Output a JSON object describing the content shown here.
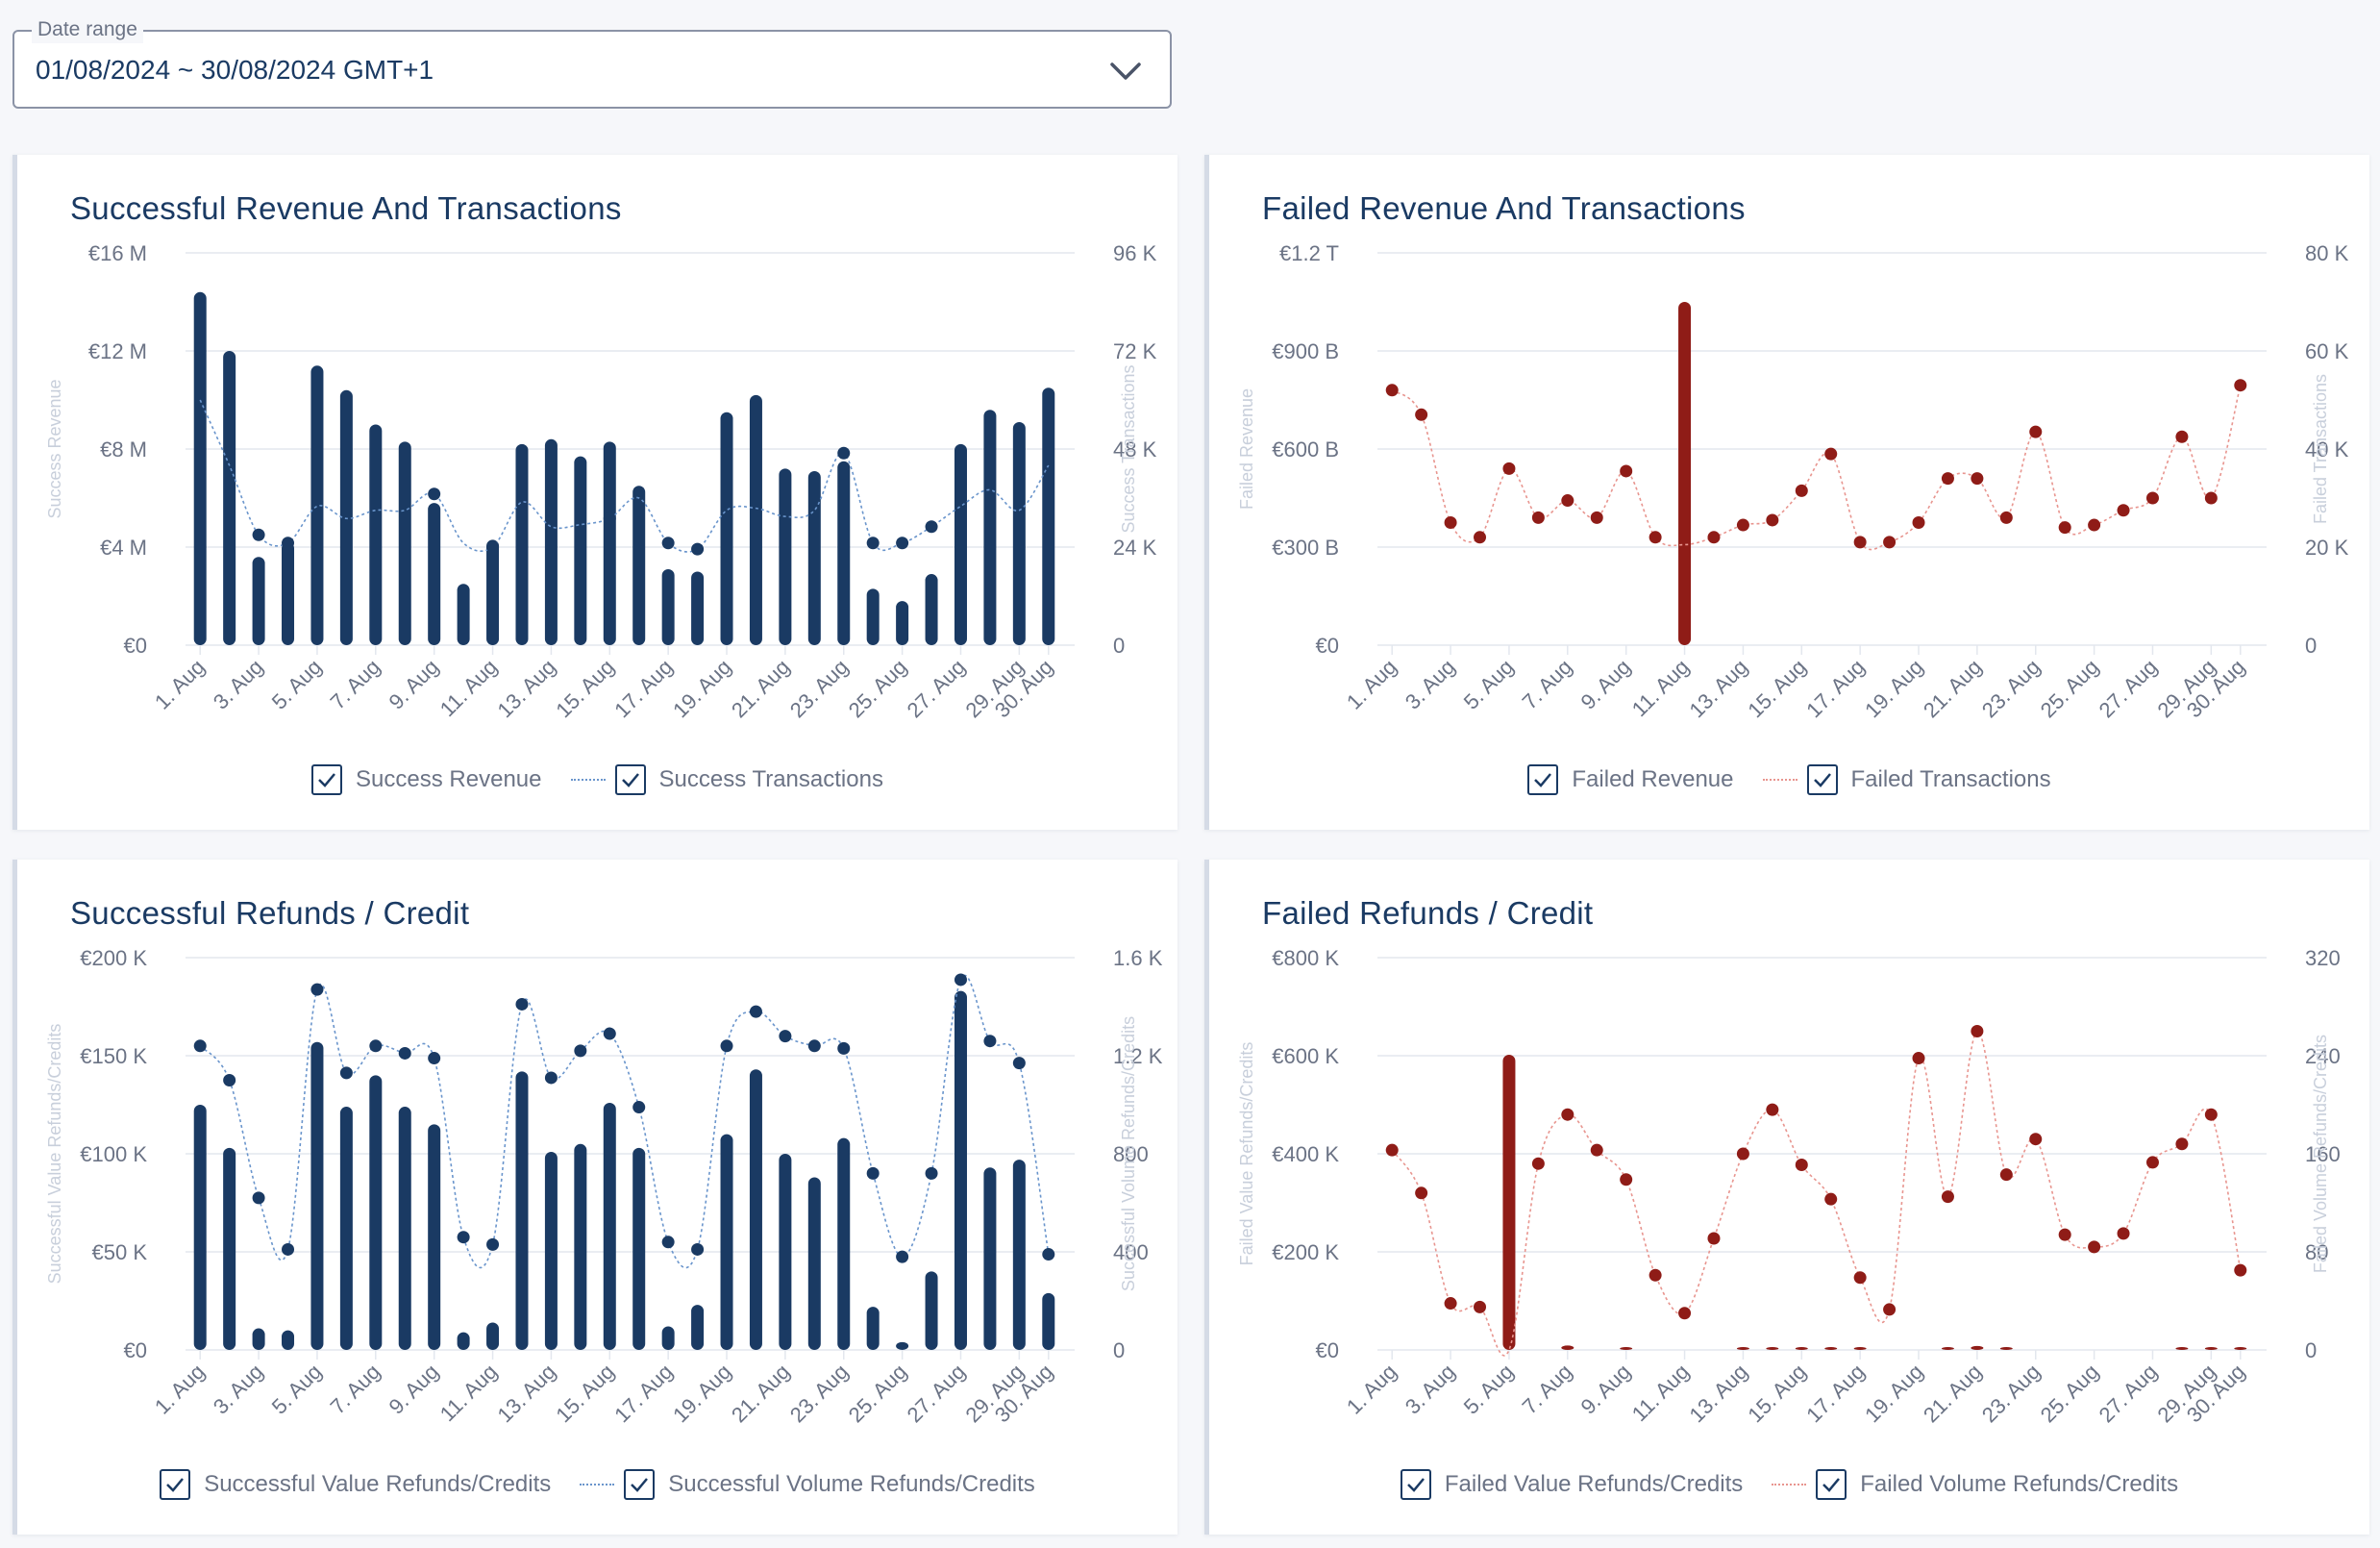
{
  "date_range": {
    "label": "Date range",
    "value": "01/08/2024 ~ 30/08/2024 GMT+1"
  },
  "colors": {
    "navy": "#1a3a63",
    "navy_line": "#6a95cc",
    "red": "#8f1c17",
    "red_line": "#e8958f",
    "grid": "#e3e7ee",
    "tick": "#6b7385",
    "axis_title": "#c8cfdb"
  },
  "icons": {
    "dropdown": "chevron-down-icon",
    "legend_checkbox": "checkbox-checked-icon"
  },
  "chart_data": [
    {
      "id": "sr",
      "type": "bar",
      "title": "Successful Revenue And Transactions",
      "categories": [
        "1. Aug",
        "2. Aug",
        "3. Aug",
        "4. Aug",
        "5. Aug",
        "6. Aug",
        "7. Aug",
        "8. Aug",
        "9. Aug",
        "10. Aug",
        "11. Aug",
        "12. Aug",
        "13. Aug",
        "14. Aug",
        "15. Aug",
        "16. Aug",
        "17. Aug",
        "18. Aug",
        "19. Aug",
        "20. Aug",
        "21. Aug",
        "22. Aug",
        "23. Aug",
        "24. Aug",
        "25. Aug",
        "26. Aug",
        "27. Aug",
        "28. Aug",
        "29. Aug",
        "30. Aug"
      ],
      "x_tick_labels": [
        "1. Aug",
        "3. Aug",
        "5. Aug",
        "7. Aug",
        "9. Aug",
        "11. Aug",
        "13. Aug",
        "15. Aug",
        "17. Aug",
        "19. Aug",
        "21. Aug",
        "23. Aug",
        "25. Aug",
        "27. Aug",
        "29. Aug",
        "30. Aug"
      ],
      "ylim_left": [
        0,
        16000000
      ],
      "ylim_right": [
        0,
        96000
      ],
      "y_left_ticks": [
        "€0",
        "€4 M",
        "€8 M",
        "€12 M",
        "€16 M"
      ],
      "y_right_ticks": [
        "0",
        "24 K",
        "48 K",
        "72 K",
        "96 K"
      ],
      "ylabel_left": "Success Revenue",
      "ylabel_right": "Success Transactions",
      "bar_series": {
        "name": "Success Revenue",
        "values": [
          14400000,
          12000000,
          3600000,
          4200000,
          11400000,
          10400000,
          9000000,
          8300000,
          5800000,
          2500000,
          4300000,
          8200000,
          8400000,
          7700000,
          8300000,
          6500000,
          3100000,
          3000000,
          9500000,
          10200000,
          7200000,
          7100000,
          7500000,
          2300000,
          1800000,
          2900000,
          8200000,
          9600000,
          9100000,
          10500000
        ]
      },
      "line_series": {
        "name": "Success Transactions",
        "values": [
          60000,
          44000,
          27000,
          25000,
          34000,
          31000,
          33000,
          33000,
          37000,
          25000,
          24000,
          35000,
          29000,
          29500,
          31000,
          36000,
          25000,
          23500,
          33000,
          33500,
          31500,
          33000,
          47000,
          25000,
          25000,
          29000,
          34000,
          38000,
          33000,
          44000
        ],
        "marker_days": [
          3,
          4,
          9,
          11,
          15,
          17,
          18,
          23,
          24,
          25,
          26
        ]
      }
    },
    {
      "id": "fr",
      "type": "bar",
      "title": "Failed Revenue And Transactions",
      "categories": [
        "1. Aug",
        "2. Aug",
        "3. Aug",
        "4. Aug",
        "5. Aug",
        "6. Aug",
        "7. Aug",
        "8. Aug",
        "9. Aug",
        "10. Aug",
        "11. Aug",
        "12. Aug",
        "13. Aug",
        "14. Aug",
        "15. Aug",
        "16. Aug",
        "17. Aug",
        "18. Aug",
        "19. Aug",
        "20. Aug",
        "21. Aug",
        "22. Aug",
        "23. Aug",
        "24. Aug",
        "25. Aug",
        "26. Aug",
        "27. Aug",
        "28. Aug",
        "29. Aug",
        "30. Aug"
      ],
      "x_tick_labels": [
        "1. Aug",
        "3. Aug",
        "5. Aug",
        "7. Aug",
        "9. Aug",
        "11. Aug",
        "13. Aug",
        "15. Aug",
        "17. Aug",
        "19. Aug",
        "21. Aug",
        "23. Aug",
        "25. Aug",
        "27. Aug",
        "29. Aug",
        "30. Aug"
      ],
      "ylim_left": [
        0,
        1200000000000
      ],
      "ylim_right": [
        0,
        80000
      ],
      "y_left_ticks": [
        "€0",
        "€300 B",
        "€600 B",
        "€900 B",
        "€1.2 T"
      ],
      "y_right_ticks": [
        "0",
        "20 K",
        "40 K",
        "60 K",
        "80 K"
      ],
      "ylabel_left": "Failed Revenue",
      "ylabel_right": "Failed Transactions",
      "bar_series": {
        "name": "Failed Revenue",
        "values": [
          0,
          0,
          0,
          0,
          0,
          0,
          0,
          0,
          0,
          0,
          1050000000000,
          0,
          0,
          0,
          0,
          0,
          0,
          0,
          0,
          0,
          0,
          0,
          0,
          0,
          0,
          0,
          0,
          0,
          0,
          0
        ]
      },
      "line_series": {
        "name": "Failed Transactions",
        "values": [
          52000,
          47000,
          25000,
          22000,
          36000,
          26000,
          29500,
          26000,
          35500,
          22000,
          20500,
          22000,
          24500,
          25500,
          31500,
          39000,
          21000,
          21000,
          25000,
          34000,
          34000,
          26000,
          43500,
          24000,
          24500,
          27500,
          30000,
          42500,
          30000,
          53000
        ],
        "marker_days": [
          1,
          2,
          3,
          4,
          5,
          6,
          7,
          8,
          9,
          10,
          12,
          13,
          14,
          15,
          16,
          17,
          18,
          19,
          20,
          21,
          22,
          23,
          24,
          25,
          26,
          27,
          28,
          29,
          30
        ]
      }
    },
    {
      "id": "sf",
      "type": "bar",
      "title": "Successful Refunds / Credit",
      "categories": [
        "1. Aug",
        "2. Aug",
        "3. Aug",
        "4. Aug",
        "5. Aug",
        "6. Aug",
        "7. Aug",
        "8. Aug",
        "9. Aug",
        "10. Aug",
        "11. Aug",
        "12. Aug",
        "13. Aug",
        "14. Aug",
        "15. Aug",
        "16. Aug",
        "17. Aug",
        "18. Aug",
        "19. Aug",
        "20. Aug",
        "21. Aug",
        "22. Aug",
        "23. Aug",
        "24. Aug",
        "25. Aug",
        "26. Aug",
        "27. Aug",
        "28. Aug",
        "29. Aug",
        "30. Aug"
      ],
      "x_tick_labels": [
        "1. Aug",
        "3. Aug",
        "5. Aug",
        "7. Aug",
        "9. Aug",
        "11. Aug",
        "13. Aug",
        "15. Aug",
        "17. Aug",
        "19. Aug",
        "21. Aug",
        "23. Aug",
        "25. Aug",
        "27. Aug",
        "29. Aug",
        "30. Aug"
      ],
      "ylim_left": [
        0,
        200000
      ],
      "ylim_right": [
        0,
        1600
      ],
      "y_left_ticks": [
        "€0",
        "€50 K",
        "€100 K",
        "€150 K",
        "€200 K"
      ],
      "y_right_ticks": [
        "0",
        "400",
        "800",
        "1.2 K",
        "1.6 K"
      ],
      "ylabel_left": "Successful Value Refunds/Credits",
      "ylabel_right": "Successful Volume Refunds/Credits",
      "bar_series": {
        "name": "Successful Value Refunds/Credits",
        "values": [
          125000,
          103000,
          11000,
          10000,
          157000,
          124000,
          140000,
          124000,
          115000,
          9000,
          14000,
          142000,
          101000,
          105000,
          126000,
          103000,
          12000,
          23000,
          110000,
          143000,
          100000,
          88000,
          108000,
          22000,
          4000,
          40000,
          183000,
          93000,
          97000,
          29000
        ]
      },
      "line_series": {
        "name": "Successful Volume Refunds/Credits",
        "values": [
          1240,
          1100,
          620,
          410,
          1470,
          1130,
          1240,
          1210,
          1190,
          460,
          430,
          1410,
          1110,
          1220,
          1290,
          990,
          440,
          410,
          1240,
          1380,
          1280,
          1240,
          1230,
          720,
          380,
          720,
          1510,
          1260,
          1170,
          390
        ],
        "marker_days": [
          1,
          2,
          3,
          4,
          5,
          6,
          7,
          8,
          9,
          10,
          11,
          12,
          13,
          14,
          15,
          16,
          17,
          18,
          19,
          20,
          21,
          22,
          23,
          24,
          25,
          26,
          27,
          28,
          29,
          30
        ]
      }
    },
    {
      "id": "ff",
      "type": "bar",
      "title": "Failed Refunds / Credit",
      "categories": [
        "1. Aug",
        "2. Aug",
        "3. Aug",
        "4. Aug",
        "5. Aug",
        "6. Aug",
        "7. Aug",
        "8. Aug",
        "9. Aug",
        "10. Aug",
        "11. Aug",
        "12. Aug",
        "13. Aug",
        "14. Aug",
        "15. Aug",
        "16. Aug",
        "17. Aug",
        "18. Aug",
        "19. Aug",
        "20. Aug",
        "21. Aug",
        "22. Aug",
        "23. Aug",
        "24. Aug",
        "25. Aug",
        "26. Aug",
        "27. Aug",
        "28. Aug",
        "29. Aug",
        "30. Aug"
      ],
      "x_tick_labels": [
        "1. Aug",
        "3. Aug",
        "5. Aug",
        "7. Aug",
        "9. Aug",
        "11. Aug",
        "13. Aug",
        "15. Aug",
        "17. Aug",
        "19. Aug",
        "21. Aug",
        "23. Aug",
        "25. Aug",
        "27. Aug",
        "29. Aug",
        "30. Aug"
      ],
      "ylim_left": [
        0,
        800000
      ],
      "ylim_right": [
        0,
        320
      ],
      "y_left_ticks": [
        "€0",
        "€200 K",
        "€400 K",
        "€600 K",
        "€800 K"
      ],
      "y_right_ticks": [
        "0",
        "80",
        "160",
        "240",
        "320"
      ],
      "ylabel_left": "Failed Value Refunds/Credits",
      "ylabel_right": "Failed Volume Refunds/Credits",
      "bar_series": {
        "name": "Failed Value Refunds/Credits",
        "values": [
          0,
          0,
          0,
          0,
          602000,
          0,
          9000,
          0,
          3000,
          0,
          0,
          0,
          2000,
          3000,
          2000,
          3000,
          3000,
          0,
          0,
          3000,
          8000,
          5000,
          0,
          0,
          0,
          0,
          0,
          2000,
          2000,
          2000
        ]
      },
      "line_series": {
        "name": "Failed Volume Refunds/Credits",
        "values": [
          163,
          128,
          38,
          35,
          0,
          152,
          192,
          163,
          139,
          61,
          30,
          91,
          160,
          196,
          151,
          123,
          59,
          33,
          238,
          125,
          260,
          143,
          172,
          94,
          84,
          95,
          153,
          168,
          192,
          65
        ],
        "marker_days": [
          1,
          2,
          3,
          4,
          6,
          7,
          8,
          9,
          10,
          11,
          12,
          13,
          14,
          15,
          16,
          17,
          18,
          19,
          20,
          21,
          22,
          23,
          24,
          25,
          26,
          27,
          28,
          29,
          30
        ]
      }
    }
  ]
}
